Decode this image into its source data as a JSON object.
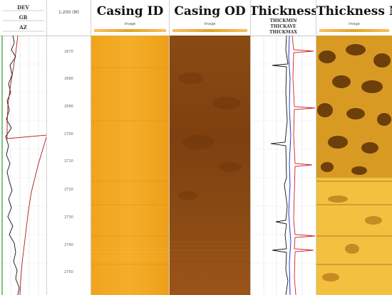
{
  "tracks": {
    "curves": {
      "labels": [
        "DEV",
        "GR",
        "AZ"
      ]
    },
    "depth": {
      "units_label": "1:200 (M)",
      "depths": [
        "2670",
        "2680",
        "2690",
        "2700",
        "2710",
        "2720",
        "2730",
        "2740",
        "2750"
      ]
    },
    "casing_id": {
      "title": "Casing ID",
      "scale_label": "Image",
      "color": "#f2a81e"
    },
    "casing_od": {
      "title": "Casing OD",
      "scale_label": "Image",
      "color": "#8a4a12"
    },
    "thickness": {
      "title": "Thickness",
      "curve_labels": [
        "THICKMIN",
        "THICKAVE",
        "THICKMAX"
      ]
    },
    "thickness_map": {
      "title": "Thickness Map",
      "scale_label": "Image"
    }
  }
}
